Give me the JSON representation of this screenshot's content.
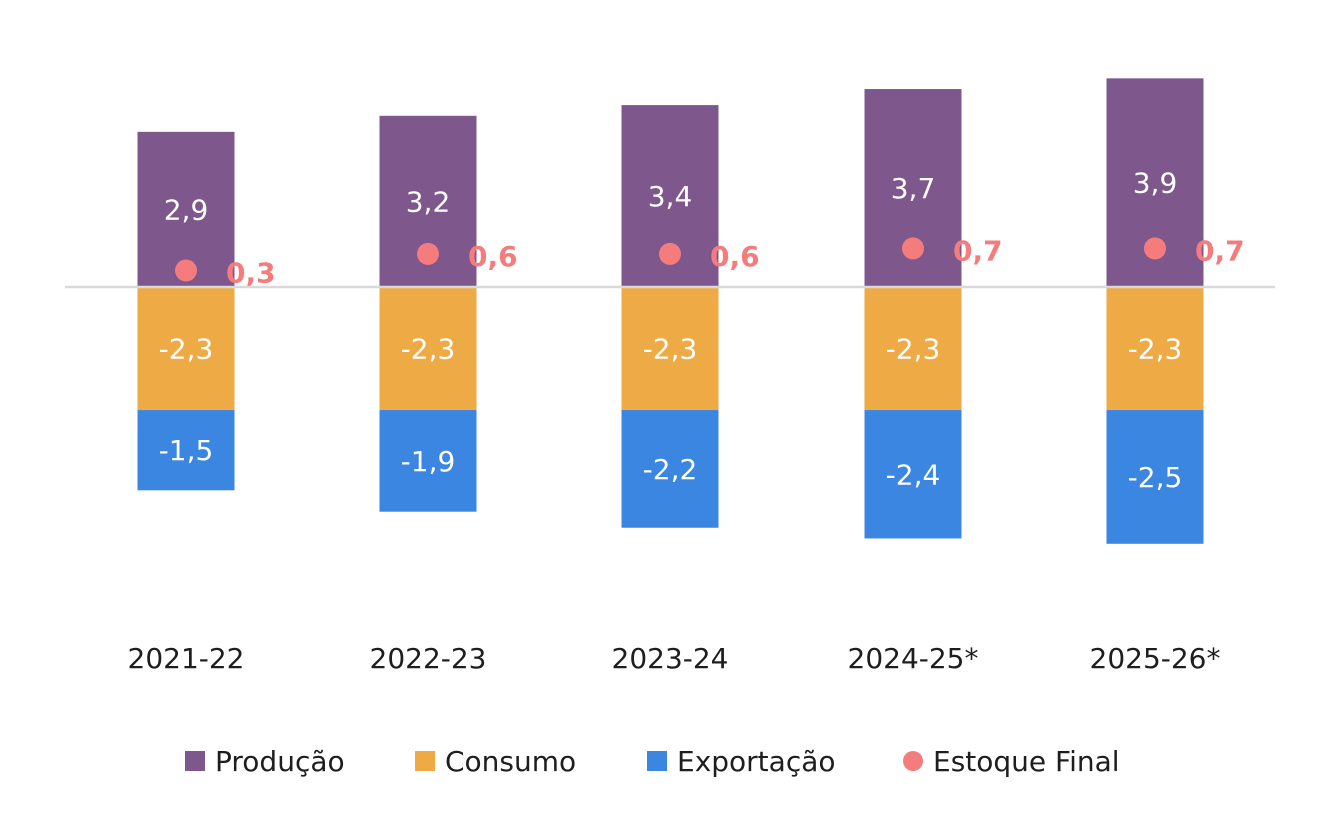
{
  "chart_data": {
    "type": "bar",
    "stacked": true,
    "categories": [
      "2021-22",
      "2022-23",
      "2023-24",
      "2024-25*",
      "2025-26*"
    ],
    "series": [
      {
        "name": "Produção",
        "kind": "bar",
        "color": "#7e578c",
        "values": [
          2.9,
          3.2,
          3.4,
          3.7,
          3.9
        ],
        "labels": [
          "2,9",
          "3,2",
          "3,4",
          "3,7",
          "3,9"
        ]
      },
      {
        "name": "Consumo",
        "kind": "bar",
        "color": "#eeaa44",
        "values": [
          -2.3,
          -2.3,
          -2.3,
          -2.3,
          -2.3
        ],
        "labels": [
          "-2,3",
          "-2,3",
          "-2,3",
          "-2,3",
          "-2,3"
        ]
      },
      {
        "name": "Exportação",
        "kind": "bar",
        "color": "#3b86e0",
        "values": [
          -1.5,
          -1.9,
          -2.2,
          -2.4,
          -2.5
        ],
        "labels": [
          "-1,5",
          "-1,9",
          "-2,2",
          "-2,4",
          "-2,5"
        ]
      },
      {
        "name": "Estoque Final",
        "kind": "scatter",
        "color": "#f47c7c",
        "values": [
          0.3,
          0.6,
          0.6,
          0.7,
          0.7
        ],
        "labels": [
          "0,3",
          "0,6",
          "0,6",
          "0,7",
          "0,7"
        ]
      }
    ],
    "ylim": [
      -6,
      4
    ],
    "legend_position": "bottom",
    "grid": false
  }
}
